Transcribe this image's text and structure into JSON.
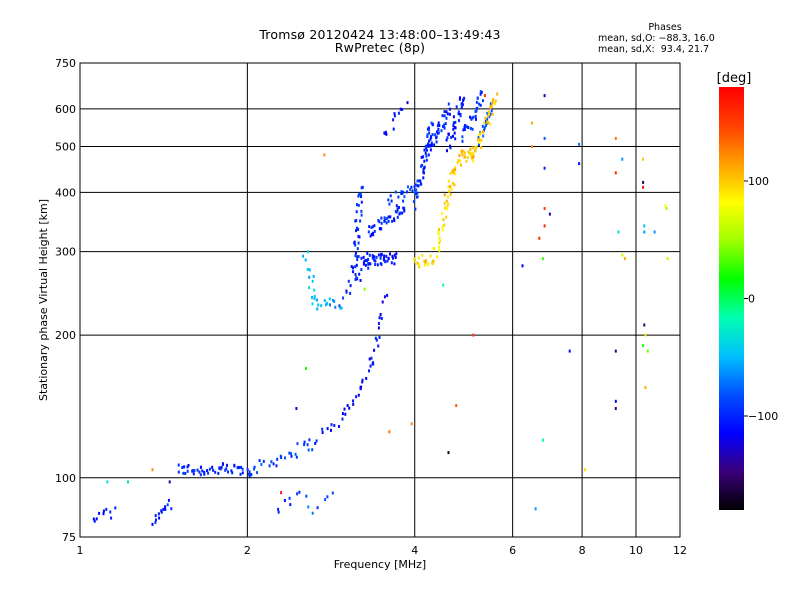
{
  "header": {
    "title_line1": "Tromsø 20120424 13:48:00–13:49:43",
    "title_line2": "RwPretec (8p)"
  },
  "phases_box": {
    "title": "Phases",
    "line1": "mean, sd,O: −88.3, 16.0",
    "line2": "mean, sd,X:  93.4, 21.7"
  },
  "colorbar": {
    "label": "[deg]",
    "ticks": [
      "100",
      "0",
      "−100"
    ],
    "tick_values": [
      100,
      0,
      -100
    ],
    "range": [
      -180,
      180
    ],
    "colormap": "rainbow",
    "colors": [
      "#000000",
      "#3a007a",
      "#0000ff",
      "#0050ff",
      "#00c0ff",
      "#00ffb0",
      "#00ff00",
      "#a0ff00",
      "#ffff00",
      "#ffa000",
      "#ff4000",
      "#ff0000"
    ]
  },
  "chart_data": {
    "type": "scatter",
    "xlabel": "Frequency [MHz]",
    "ylabel": "Stationary phase Virtual Height [km]",
    "xscale": "log",
    "yscale": "log",
    "xlim": [
      1,
      12
    ],
    "ylim": [
      75,
      750
    ],
    "xticks": [
      1,
      2,
      4,
      6,
      8,
      10,
      12
    ],
    "xtick_labels": [
      "1",
      "2",
      "4",
      "6",
      "8",
      "10",
      "12"
    ],
    "yticks": [
      75,
      100,
      200,
      300,
      400,
      500,
      600,
      750
    ],
    "ytick_labels": [
      "75",
      "100",
      "200",
      "300",
      "400",
      "500",
      "600",
      "750"
    ],
    "grid": true,
    "series": [
      {
        "segments": [
          {
            "from": [
              1.5,
              104
            ],
            "to": [
              2.05,
              104
            ],
            "n": 55,
            "phase": -100
          },
          {
            "from": [
              2.05,
              104
            ],
            "to": [
              2.6,
              118
            ],
            "n": 25,
            "phase": -90
          },
          {
            "from": [
              2.6,
              118
            ],
            "to": [
              3.0,
              135
            ],
            "n": 12,
            "phase": -105
          },
          {
            "from": [
              3.0,
              135
            ],
            "to": [
              3.35,
              175
            ],
            "n": 18,
            "phase": -115
          },
          {
            "from": [
              3.35,
              175
            ],
            "to": [
              3.55,
              240
            ],
            "n": 16,
            "phase": -110
          },
          {
            "from": [
              2.55,
              300
            ],
            "to": [
              2.65,
              232
            ],
            "n": 14,
            "phase": -45
          },
          {
            "from": [
              2.65,
              232
            ],
            "to": [
              2.95,
              232
            ],
            "n": 14,
            "phase": -55
          },
          {
            "from": [
              2.95,
              232
            ],
            "to": [
              3.3,
              290
            ],
            "n": 14,
            "phase": -95
          },
          {
            "from": [
              3.1,
              260
            ],
            "to": [
              3.2,
              410
            ],
            "n": 40,
            "phase": -100
          },
          {
            "from": [
              3.2,
              290
            ],
            "to": [
              3.7,
              290
            ],
            "n": 45,
            "phase": -105
          },
          {
            "from": [
              3.3,
              330
            ],
            "to": [
              3.85,
              370
            ],
            "n": 40,
            "phase": -100
          },
          {
            "from": [
              3.6,
              380
            ],
            "to": [
              4.0,
              410
            ],
            "n": 20,
            "phase": -90
          },
          {
            "from": [
              3.5,
              520
            ],
            "to": [
              3.85,
              620
            ],
            "n": 12,
            "phase": -110
          },
          {
            "from": [
              4.0,
              380
            ],
            "to": [
              4.3,
              560
            ],
            "n": 45,
            "phase": -95
          },
          {
            "from": [
              4.2,
              480
            ],
            "to": [
              4.6,
              600
            ],
            "n": 40,
            "phase": -100
          },
          {
            "from": [
              4.6,
              500
            ],
            "to": [
              4.9,
              640
            ],
            "n": 35,
            "phase": -105
          },
          {
            "from": [
              4.9,
              520
            ],
            "to": [
              5.3,
              640
            ],
            "n": 30,
            "phase": -95
          },
          {
            "from": [
              5.25,
              520
            ],
            "to": [
              5.5,
              600
            ],
            "n": 20,
            "phase": -80
          },
          {
            "from": [
              4.0,
              285
            ],
            "to": [
              4.35,
              290
            ],
            "n": 18,
            "phase": 95
          },
          {
            "from": [
              4.35,
              290
            ],
            "to": [
              4.55,
              380
            ],
            "n": 22,
            "phase": 90
          },
          {
            "from": [
              4.55,
              380
            ],
            "to": [
              4.8,
              470
            ],
            "n": 22,
            "phase": 100
          },
          {
            "from": [
              4.8,
              470
            ],
            "to": [
              5.1,
              490
            ],
            "n": 22,
            "phase": 105
          },
          {
            "from": [
              5.1,
              470
            ],
            "to": [
              5.6,
              640
            ],
            "n": 35,
            "phase": 100
          },
          {
            "from": [
              1.05,
              82
            ],
            "to": [
              1.15,
              85
            ],
            "n": 10,
            "phase": -110
          },
          {
            "from": [
              1.35,
              82
            ],
            "to": [
              1.45,
              88
            ],
            "n": 14,
            "phase": -100
          },
          {
            "from": [
              2.25,
              85
            ],
            "to": [
              2.55,
              93
            ],
            "n": 8,
            "phase": -95
          },
          {
            "from": [
              2.6,
              85
            ],
            "to": [
              2.85,
              92
            ],
            "n": 6,
            "phase": -80
          }
        ],
        "scattered": [
          [
            6.5,
            560,
            110
          ],
          [
            6.5,
            500,
            120
          ],
          [
            6.85,
            640,
            -130
          ],
          [
            6.85,
            520,
            -80
          ],
          [
            6.85,
            450,
            -100
          ],
          [
            6.85,
            370,
            150
          ],
          [
            6.85,
            340,
            160
          ],
          [
            7.0,
            360,
            -130
          ],
          [
            6.7,
            320,
            155
          ],
          [
            6.25,
            280,
            -115
          ],
          [
            6.8,
            290,
            30
          ],
          [
            7.6,
            185,
            -110
          ],
          [
            7.9,
            505,
            -70
          ],
          [
            7.9,
            460,
            -110
          ],
          [
            8.1,
            104,
            95
          ],
          [
            9.2,
            520,
            130
          ],
          [
            9.2,
            440,
            160
          ],
          [
            9.45,
            470,
            -60
          ],
          [
            9.3,
            330,
            -40
          ],
          [
            9.45,
            295,
            60
          ],
          [
            9.55,
            290,
            110
          ],
          [
            10.3,
            470,
            100
          ],
          [
            10.3,
            420,
            -160
          ],
          [
            10.3,
            410,
            170
          ],
          [
            10.35,
            340,
            -50
          ],
          [
            10.35,
            330,
            -60
          ],
          [
            10.35,
            210,
            -150
          ],
          [
            10.4,
            200,
            90
          ],
          [
            10.3,
            190,
            20
          ],
          [
            10.5,
            185,
            40
          ],
          [
            10.4,
            155,
            110
          ],
          [
            9.2,
            185,
            -140
          ],
          [
            9.2,
            145,
            -120
          ],
          [
            9.2,
            140,
            -150
          ],
          [
            10.8,
            330,
            -60
          ],
          [
            11.3,
            375,
            80
          ],
          [
            11.35,
            370,
            50
          ],
          [
            11.4,
            290,
            60
          ],
          [
            6.8,
            120,
            -20
          ],
          [
            6.6,
            86,
            -60
          ],
          [
            5.1,
            200,
            150
          ],
          [
            4.75,
            142,
            140
          ],
          [
            4.6,
            113,
            -170
          ],
          [
            3.6,
            125,
            130
          ],
          [
            3.95,
            130,
            120
          ],
          [
            2.75,
            480,
            120
          ],
          [
            2.55,
            170,
            20
          ],
          [
            2.3,
            93,
            170
          ],
          [
            1.35,
            104,
            120
          ],
          [
            1.12,
            98,
            -30
          ],
          [
            1.22,
            98,
            -30
          ],
          [
            1.45,
            98,
            -140
          ],
          [
            3.25,
            250,
            45
          ],
          [
            4.5,
            255,
            -20
          ],
          [
            5.35,
            640,
            160
          ],
          [
            2.45,
            140,
            -130
          ]
        ]
      }
    ]
  }
}
